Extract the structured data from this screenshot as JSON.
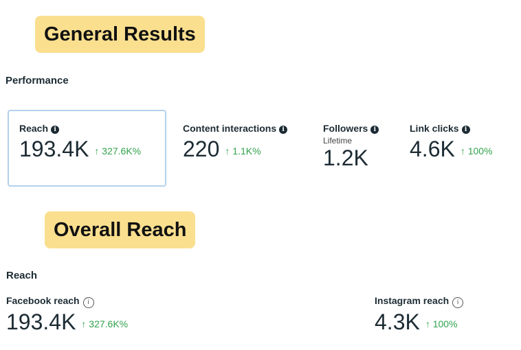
{
  "banners": {
    "general": "General Results",
    "overall": "Overall Reach"
  },
  "performance": {
    "title": "Performance",
    "metrics": [
      {
        "label": "Reach",
        "value": "193.4K",
        "change": "↑ 327.6K%"
      },
      {
        "label": "Content interactions",
        "value": "220",
        "change": "↑ 1.1K%"
      },
      {
        "label": "Followers",
        "sublabel": "Lifetime",
        "value": "1.2K"
      },
      {
        "label": "Link clicks",
        "value": "4.6K",
        "change": "↑ 100%"
      }
    ]
  },
  "reach": {
    "title": "Reach",
    "metrics": [
      {
        "label": "Facebook reach",
        "value": "193.4K",
        "change": "↑ 327.6K%"
      },
      {
        "label": "Instagram reach",
        "value": "4.3K",
        "change": "↑ 100%"
      }
    ]
  },
  "colors": {
    "banner": "#fadf8f",
    "positive": "#31a24c",
    "selected_border": "#b3d1ec"
  }
}
